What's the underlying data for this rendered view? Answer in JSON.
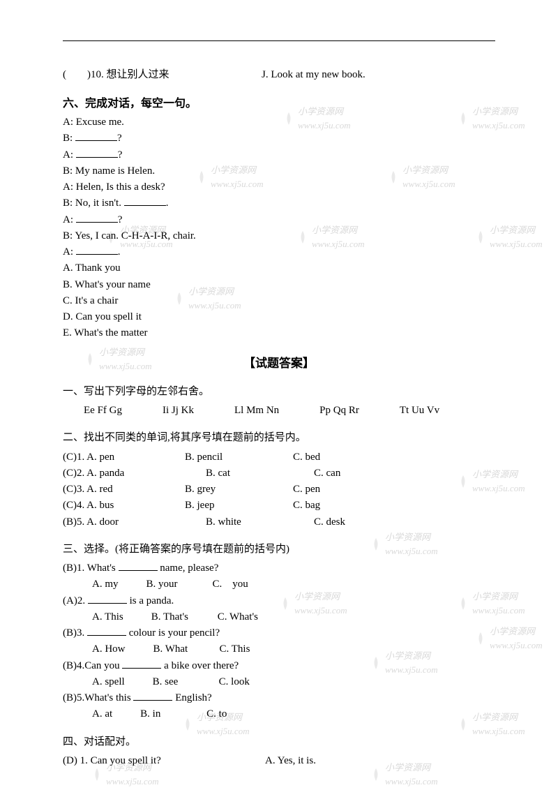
{
  "q10": {
    "left": "(　　)10. 想让别人过来",
    "right": "J. Look at my new book."
  },
  "section6": {
    "title": "六、完成对话，每空一句。",
    "lines": {
      "a1": "A: Excuse me.",
      "b1a": "B: ",
      "b1b": "?",
      "a2a": "A: ",
      "a2b": "?",
      "b2": "B: My name is Helen.",
      "a3": "A: Helen, Is this a desk?",
      "b3a": "B: No, it isn't. ",
      "b3b": ".",
      "a4a": "A: ",
      "a4b": "?",
      "b4": "B: Yes, I can. C-H-A-I-R, chair.",
      "a5a": "A: ",
      "a5b": ".",
      "optA": "A. Thank you",
      "optB": "B. What's your name",
      "optC": "C. It's a chair",
      "optD": "D. Can you spell it",
      "optE": "E. What's the matter"
    }
  },
  "answersTitle": "【试题答案】",
  "ans1": {
    "title": "一、写出下列字母的左邻右舍。",
    "items": [
      "Ee Ff Gg",
      "Ii Jj Kk",
      "Ll Mm Nn",
      "Pp Qq Rr",
      "Tt Uu Vv"
    ]
  },
  "ans2": {
    "title": "二、找出不同类的单词,将其序号填在题前的括号内。",
    "rows": [
      {
        "l": "(C)1. A. pen",
        "m": "B. pencil",
        "r": "C. bed"
      },
      {
        "l": "(C)2. A. panda",
        "m": "　　B. cat",
        "r": "　　C. can"
      },
      {
        "l": "(C)3. A. red",
        "m": "B. grey",
        "r": "C. pen"
      },
      {
        "l": "(C)4. A. bus",
        "m": "B. jeep",
        "r": "C. bag"
      },
      {
        "l": "(B)5. A. door",
        "m": "　　B. white",
        "r": "　　C. desk"
      }
    ]
  },
  "ans3": {
    "title": "三、选择。(将正确答案的序号填在题前的括号内)",
    "rows": [
      {
        "q": "(B)1. What's ________ name, please?",
        "a": "A. my",
        "b": "B. your",
        "c": "C.　you"
      },
      {
        "q": "(A)2. ________ is a panda.",
        "a": "A. This",
        "b": "B. That's",
        "c": "C. What's"
      },
      {
        "q": "(B)3. ________ colour is your pencil?",
        "a": "A. How",
        "b": "B. What",
        "c": "C. This"
      },
      {
        "q": "(B)4.Can you ________ a bike over there?",
        "a": "A. spell",
        "b": "B. see",
        "c": "C. look"
      },
      {
        "q": "(B)5.What's this ________ English?",
        "a": "A. at",
        "b": "B. in",
        "c": "C. to"
      }
    ]
  },
  "ans4": {
    "title": "四、对话配对。",
    "row": {
      "l": "(D) 1. Can you spell it?",
      "r": "A. Yes, it is."
    }
  },
  "wm": {
    "t1": "小学资源网",
    "t2": "www.xj5u.com"
  }
}
